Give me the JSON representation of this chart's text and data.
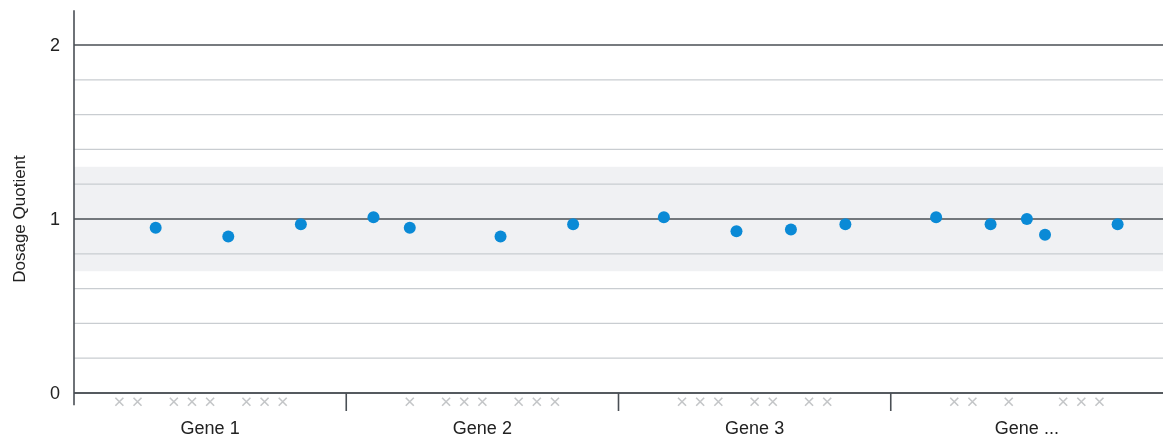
{
  "chart_data": {
    "type": "scatter",
    "ylabel": "Dosage Quotient",
    "categories": [
      null,
      null,
      null,
      null,
      null,
      null,
      null,
      "Gene 1",
      null,
      null,
      null,
      null,
      null,
      null,
      null,
      null,
      null,
      null,
      null,
      null,
      null,
      null,
      "Gene 2",
      null,
      null,
      null,
      null,
      null,
      null,
      null,
      null,
      null,
      null,
      null,
      null,
      null,
      null,
      "Gene 3",
      null,
      null,
      null,
      null,
      null,
      null,
      null,
      null,
      null,
      null,
      null,
      null,
      null,
      null,
      "Gene ...",
      null,
      null,
      null,
      null,
      null,
      null,
      null
    ],
    "ylim": [
      -0.07,
      2.2
    ],
    "yticks": [
      0,
      {
        "value": 0.2,
        "label": null
      },
      {
        "value": 0.4,
        "label": null
      },
      {
        "value": 0.6,
        "label": null
      },
      {
        "value": 0.8,
        "label": null
      },
      1,
      {
        "value": 1.2,
        "label": null
      },
      {
        "value": 1.4,
        "label": null
      },
      {
        "value": 1.6,
        "label": null
      },
      {
        "value": 1.8,
        "label": null
      },
      2
    ],
    "grid": "y",
    "bands": [
      {
        "axis": "y",
        "from": 0.7,
        "to": 1.3,
        "color": "#f0f1f3"
      }
    ],
    "series": [
      {
        "color": "#0a8ad6",
        "marker": "circle",
        "values": [
          null,
          null,
          null,
          null,
          0.95,
          null,
          null,
          null,
          0.9,
          null,
          null,
          null,
          0.97,
          null,
          null,
          null,
          1.01,
          null,
          0.95,
          null,
          null,
          null,
          null,
          0.9,
          null,
          null,
          null,
          0.97,
          null,
          null,
          null,
          null,
          1.01,
          null,
          null,
          null,
          0.93,
          null,
          null,
          0.94,
          null,
          null,
          0.97,
          null,
          null,
          null,
          null,
          1.01,
          null,
          null,
          0.97,
          null,
          1.0,
          0.91,
          null,
          null,
          null,
          0.97,
          null,
          null
        ]
      },
      {
        "color": "#c4c6c8",
        "marker": "cross",
        "values": [
          null,
          null,
          -0.05,
          -0.05,
          null,
          -0.05,
          -0.05,
          -0.05,
          null,
          -0.05,
          -0.05,
          -0.05,
          null,
          null,
          null,
          null,
          null,
          null,
          -0.05,
          null,
          -0.05,
          -0.05,
          -0.05,
          null,
          -0.05,
          -0.05,
          -0.05,
          null,
          null,
          null,
          null,
          null,
          null,
          -0.05,
          -0.05,
          -0.05,
          null,
          -0.05,
          -0.05,
          null,
          -0.05,
          -0.05,
          null,
          null,
          null,
          null,
          null,
          null,
          -0.05,
          -0.05,
          null,
          -0.05,
          null,
          null,
          -0.05,
          -0.05,
          -0.05,
          null,
          null,
          null
        ]
      }
    ]
  }
}
